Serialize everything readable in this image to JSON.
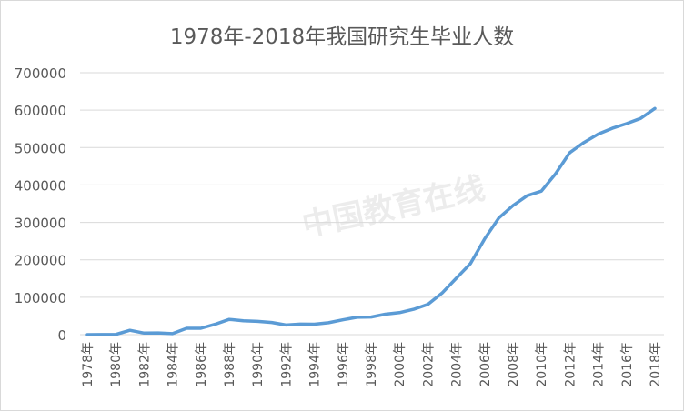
{
  "chart_data": {
    "type": "line",
    "title": "1978年-2018年我国研究生毕业人数",
    "xlabel": "",
    "ylabel": "",
    "ylim": [
      0,
      700000
    ],
    "yticks": [
      0,
      100000,
      200000,
      300000,
      400000,
      500000,
      600000,
      700000
    ],
    "grid": true,
    "legend": "none",
    "color": "#5b9bd5",
    "x": [
      1978,
      1979,
      1980,
      1981,
      1982,
      1983,
      1984,
      1985,
      1986,
      1987,
      1988,
      1989,
      1990,
      1991,
      1992,
      1993,
      1994,
      1995,
      1996,
      1997,
      1998,
      1999,
      2000,
      2001,
      2002,
      2003,
      2004,
      2005,
      2006,
      2007,
      2008,
      2009,
      2010,
      2011,
      2012,
      2013,
      2014,
      2015,
      2016,
      2017,
      2018
    ],
    "xtick_labels": [
      "1978年",
      "1980年",
      "1982年",
      "1984年",
      "1986年",
      "1988年",
      "1990年",
      "1992年",
      "1994年",
      "1996年",
      "1998年",
      "2000年",
      "2002年",
      "2004年",
      "2006年",
      "2008年",
      "2010年",
      "2012年",
      "2014年",
      "2016年",
      "2018年"
    ],
    "series": [
      {
        "name": "研究生毕业人数",
        "values": [
          9,
          140,
          476,
          11669,
          4058,
          4497,
          2756,
          17004,
          16950,
          27603,
          40838,
          37232,
          35440,
          32537,
          25692,
          28214,
          28047,
          31877,
          39652,
          46539,
          47077,
          54670,
          58767,
          67809,
          80841,
          111091,
          150777,
          189728,
          255902,
          311839,
          344825,
          371273,
          383600,
          429994,
          486455,
          513626,
          535863,
          551522,
          563938,
          578045,
          604368
        ]
      }
    ]
  }
}
